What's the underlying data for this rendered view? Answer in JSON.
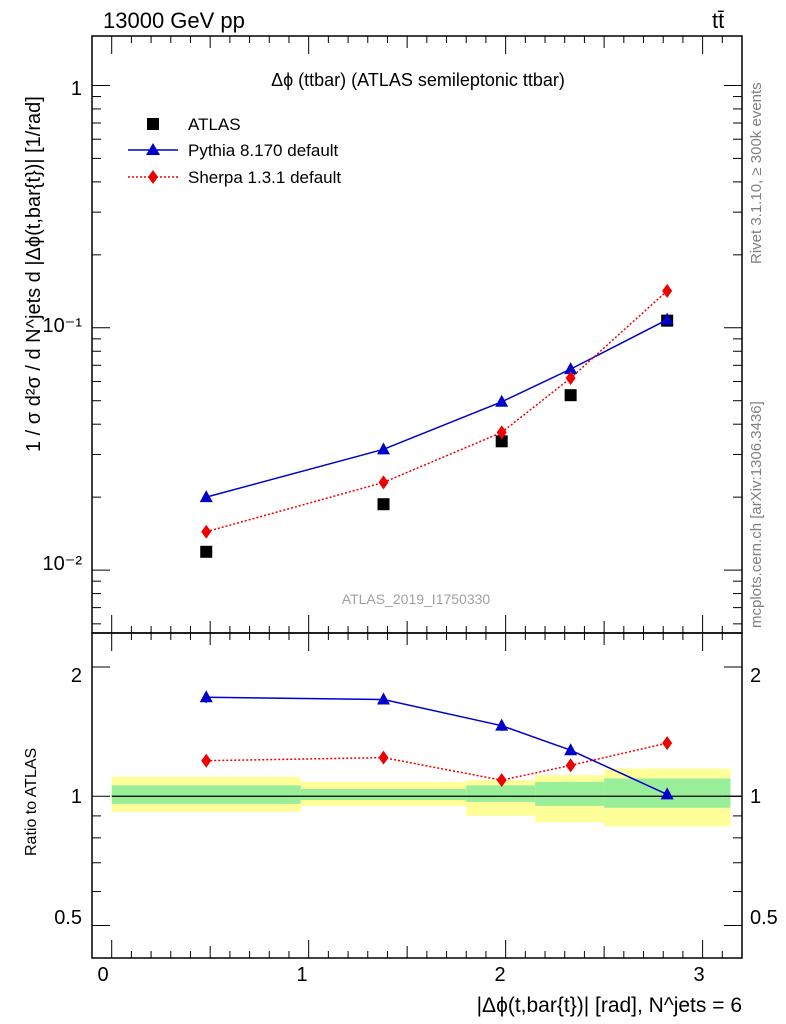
{
  "header": {
    "energy_label": "13000 GeV pp",
    "process_label": "tt̄"
  },
  "main_plot": {
    "title": "Δϕ (ttbar) (ATLAS semileptonic ttbar)",
    "watermark": "ATLAS_2019_I1750330",
    "ylabel": "1 / σ d²σ / d N^jets d |Δϕ(t,bar{t})| [1/rad]",
    "ytick_labels": [
      "1",
      "10⁻¹",
      "10⁻²"
    ]
  },
  "ratio_plot": {
    "ylabel": "Ratio to ATLAS",
    "ytick_labels": [
      "2",
      "1",
      "0.5"
    ],
    "xtick_labels": [
      "0",
      "1",
      "2",
      "3"
    ],
    "xlabel": "|Δϕ(t,bar{t})| [rad], N^jets = 6"
  },
  "side_labels": {
    "rivet": "Rivet 3.1.10, ≥ 300k events",
    "source": "mcplots.cern.ch [arXiv:1306.3436]"
  },
  "legend": [
    {
      "label": "ATLAS",
      "color": "#000000",
      "marker": "square",
      "line": "none"
    },
    {
      "label": "Pythia 8.170 default",
      "color": "#0000cc",
      "marker": "triangle",
      "line": "solid"
    },
    {
      "label": "Sherpa 1.3.1 default",
      "color": "#ee0000",
      "marker": "diamond",
      "line": "dotted"
    }
  ],
  "chart_data": {
    "type": "scatter",
    "title": "Δϕ (ttbar) (ATLAS semileptonic ttbar)",
    "xlabel": "|Δϕ(t,bar{t})| [rad], N^jets = 6",
    "ylabel": "1 / σ d²σ / d N^jets d |Δϕ(t,bar{t})| [1/rad]",
    "xlim": [
      -0.1,
      3.2
    ],
    "ylim": [
      0.0055,
      1.6
    ],
    "yscale": "log",
    "x": [
      0.48,
      1.38,
      1.98,
      2.33,
      2.82
    ],
    "bin_edges": [
      0.0,
      0.96,
      1.8,
      2.15,
      2.5,
      3.1416
    ],
    "series": [
      {
        "name": "ATLAS",
        "values": [
          0.0119,
          0.0187,
          0.034,
          0.0527,
          0.107
        ]
      },
      {
        "name": "Pythia 8.170 default",
        "values": [
          0.02,
          0.0315,
          0.0495,
          0.0675,
          0.108
        ]
      },
      {
        "name": "Sherpa 1.3.1 default",
        "values": [
          0.0144,
          0.023,
          0.037,
          0.062,
          0.142
        ]
      }
    ],
    "ratio": {
      "ylabel": "Ratio to ATLAS",
      "ylim": [
        0.42,
        2.4
      ],
      "yscale": "log",
      "series": [
        {
          "name": "Pythia 8.170 default",
          "values": [
            1.7,
            1.68,
            1.46,
            1.28,
            1.01
          ],
          "errors": [
            0.05,
            0.04,
            0.04,
            0.03,
            0.02
          ]
        },
        {
          "name": "Sherpa 1.3.1 default",
          "values": [
            1.21,
            1.23,
            1.09,
            1.18,
            1.33
          ],
          "errors": [
            0.04,
            0.03,
            0.03,
            0.02,
            0.02
          ]
        }
      ],
      "band_inner": [
        [
          0.96,
          1.06
        ],
        [
          0.98,
          1.04
        ],
        [
          0.97,
          1.06
        ],
        [
          0.95,
          1.08
        ],
        [
          0.94,
          1.1
        ]
      ],
      "band_outer": [
        [
          0.92,
          1.11
        ],
        [
          0.95,
          1.08
        ],
        [
          0.9,
          1.09
        ],
        [
          0.87,
          1.12
        ],
        [
          0.85,
          1.16
        ]
      ]
    }
  },
  "colors": {
    "data": "#000000",
    "pythia": "#0000cc",
    "sherpa": "#ee0000",
    "band_inner": "#99ee99",
    "band_outer": "#ffff99",
    "watermark": "#a0a0a0",
    "side_text": "#808080"
  }
}
